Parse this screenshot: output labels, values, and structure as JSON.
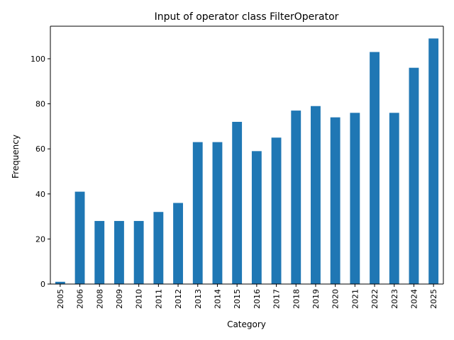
{
  "chart_data": {
    "type": "bar",
    "title": "Input of operator class FilterOperator",
    "xlabel": "Category",
    "ylabel": "Frequency",
    "categories": [
      "2005",
      "2006",
      "2008",
      "2009",
      "2010",
      "2011",
      "2012",
      "2013",
      "2014",
      "2015",
      "2016",
      "2017",
      "2018",
      "2019",
      "2020",
      "2021",
      "2022",
      "2023",
      "2024",
      "2025"
    ],
    "values": [
      1,
      41,
      28,
      28,
      28,
      32,
      36,
      63,
      63,
      72,
      59,
      65,
      77,
      79,
      74,
      76,
      103,
      76,
      96,
      109
    ],
    "ylim": [
      0,
      114.45
    ],
    "yticks": [
      0,
      20,
      40,
      60,
      80,
      100
    ],
    "bar_color": "#1f77b4",
    "grid": false,
    "legend": "none"
  }
}
